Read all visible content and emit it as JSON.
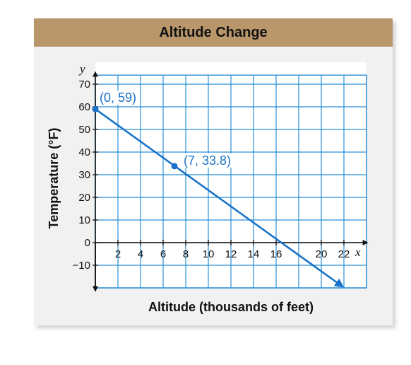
{
  "chart_data": {
    "type": "line",
    "title": "Altitude Change",
    "xlabel": "Altitude (thousands of feet)",
    "ylabel": "Temperature (°F)",
    "x_axis_letter": "x",
    "y_axis_letter": "y",
    "xlim": [
      0,
      24
    ],
    "ylim": [
      -20,
      74
    ],
    "x_ticks": [
      2,
      4,
      6,
      8,
      10,
      12,
      14,
      16,
      20,
      22
    ],
    "x_tick_labels": [
      "2",
      "4",
      "6",
      "8",
      "10",
      "12",
      "14",
      "16",
      "20",
      "22"
    ],
    "y_ticks": [
      70,
      60,
      50,
      40,
      30,
      20,
      10,
      0,
      -10
    ],
    "y_tick_labels": [
      "70",
      "60",
      "50",
      "40",
      "30",
      "20",
      "10",
      "0",
      "−10"
    ],
    "grid": true,
    "series": [
      {
        "line_start": [
          0,
          59
        ],
        "line_end": [
          22,
          -20
        ],
        "slope": -3.6,
        "intercept": 59,
        "arrow_end": true,
        "color": "#1a73c8"
      }
    ],
    "points": [
      {
        "x": 0,
        "y": 59,
        "label": "(0, 59)"
      },
      {
        "x": 7,
        "y": 33.8,
        "label": "(7, 33.8)"
      }
    ]
  },
  "colors": {
    "title_bar": "#b9976b",
    "grid": "#2a8fd8",
    "line": "#1a73c8",
    "panel": "#f1f1f1"
  }
}
